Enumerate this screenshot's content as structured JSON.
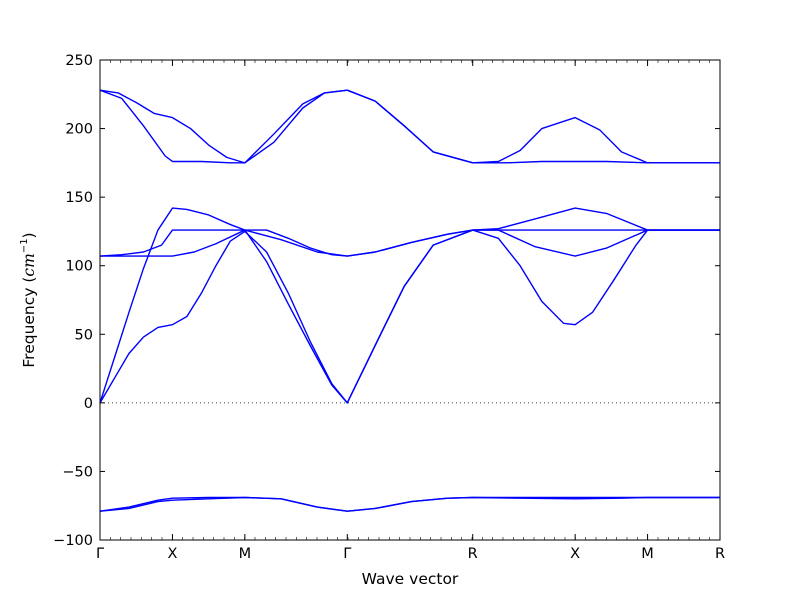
{
  "chart_data": {
    "type": "line",
    "xlabel": "Wave vector",
    "ylabel": "Frequency (cm⁻¹)",
    "ylabel_main": "Frequency (",
    "ylabel_unit": "cm",
    "ylabel_exp": "−1",
    "ylabel_close": ")",
    "ylim": [
      -100,
      250
    ],
    "yticks": [
      -100,
      -50,
      0,
      50,
      100,
      150,
      200,
      250
    ],
    "ytick_labels": [
      "−100",
      "−50",
      "0",
      "50",
      "100",
      "150",
      "200",
      "250"
    ],
    "xlim": [
      0,
      8.5
    ],
    "xticks": [
      0,
      1,
      2,
      3.414,
      5.146,
      6.56,
      7.56,
      8.56
    ],
    "xtick_labels": [
      "Γ",
      "X",
      "M",
      "Γ",
      "R",
      "X",
      "M",
      "R"
    ],
    "zero_line": {
      "y": 0,
      "style": "dotted"
    },
    "line_color": "#0000ff",
    "series": [
      {
        "x": [
          0,
          0.25,
          0.5,
          0.75,
          1,
          1.25,
          1.5,
          1.75,
          2,
          2.4,
          2.8,
          3.1,
          3.414,
          3.8,
          4.2,
          4.6,
          5.146,
          5.5,
          5.8,
          6.1,
          6.56,
          6.9,
          7.2,
          7.56,
          7.9,
          8.2,
          8.56
        ],
        "y": [
          228,
          226,
          219,
          211,
          208,
          200,
          188,
          179,
          175,
          196,
          218,
          226,
          228,
          220,
          202,
          183,
          175,
          176,
          184,
          200,
          208,
          199,
          183,
          175,
          175,
          175,
          175
        ]
      },
      {
        "x": [
          0,
          0.3,
          0.6,
          0.9,
          1,
          1.4,
          1.8,
          2,
          2.4,
          2.8,
          3.1,
          3.414,
          3.8,
          4.2,
          4.6,
          5.146,
          5.6,
          6.1,
          6.56,
          7.0,
          7.56,
          8.0,
          8.56
        ],
        "y": [
          228,
          222,
          202,
          180,
          176,
          176,
          175,
          175,
          190,
          215,
          226,
          228,
          220,
          202,
          183,
          175,
          175,
          176,
          176,
          176,
          175,
          175,
          175
        ]
      },
      {
        "x": [
          0,
          0.3,
          0.6,
          0.85,
          1,
          1.3,
          1.6,
          2,
          2.5,
          3.0,
          3.414,
          3.8,
          4.3,
          4.8,
          5.146,
          5.5,
          6.0,
          6.56,
          7.0,
          7.56,
          8.0,
          8.56
        ],
        "y": [
          107,
          108,
          110,
          115,
          126,
          126,
          126,
          126,
          119,
          110,
          107,
          110,
          117,
          123,
          126,
          126,
          126,
          126,
          126,
          126,
          126,
          126
        ]
      },
      {
        "x": [
          0,
          0.3,
          0.6,
          0.85,
          1,
          1.3,
          1.6,
          2,
          2.3,
          2.6,
          2.9,
          3.2,
          3.414,
          3.8,
          4.3,
          4.8,
          5.146,
          5.5,
          6.0,
          6.56,
          7.0,
          7.56,
          8.0,
          8.56
        ],
        "y": [
          107,
          107,
          107,
          107,
          107,
          110,
          116,
          126,
          126,
          120,
          113,
          108,
          107,
          110,
          117,
          123,
          126,
          126,
          114,
          107,
          113,
          126,
          126,
          126
        ]
      },
      {
        "x": [
          0,
          0.2,
          0.4,
          0.6,
          0.8,
          1,
          1.2,
          1.5,
          1.8,
          2,
          2.3,
          2.6,
          2.9,
          3.2,
          3.414,
          3.8,
          4.2,
          4.6,
          5.146,
          5.5,
          6.0,
          6.56,
          7.0,
          7.56,
          8.0,
          8.56
        ],
        "y": [
          0,
          33,
          66,
          98,
          126,
          142,
          141,
          137,
          130,
          126,
          103,
          72,
          42,
          13,
          0,
          42,
          85,
          115,
          126,
          127,
          134,
          142,
          138,
          126,
          126,
          126
        ]
      },
      {
        "x": [
          0,
          0.2,
          0.4,
          0.6,
          0.8,
          1,
          1.2,
          1.4,
          1.6,
          1.8,
          2,
          2.3,
          2.6,
          2.9,
          3.2,
          3.414,
          3.8,
          4.2,
          4.6,
          5.146,
          5.5,
          5.8,
          6.1,
          6.4,
          6.56,
          6.8,
          7.1,
          7.4,
          7.56,
          8.0,
          8.56
        ],
        "y": [
          0,
          18,
          36,
          48,
          55,
          57,
          63,
          80,
          100,
          118,
          125,
          110,
          80,
          45,
          14,
          0,
          42,
          85,
          115,
          126,
          120,
          100,
          74,
          58,
          57,
          66,
          90,
          115,
          126,
          126,
          126
        ]
      },
      {
        "x": [
          0,
          0.4,
          0.8,
          1,
          1.5,
          2,
          2.5,
          3.0,
          3.414,
          3.8,
          4.3,
          4.8,
          5.146,
          5.8,
          6.56,
          7.2,
          7.56,
          8.0,
          8.56
        ],
        "y": [
          -79,
          -77,
          -72,
          -71,
          -70,
          -69,
          -70,
          -76,
          -79,
          -77,
          -72,
          -69.5,
          -69,
          -69.5,
          -70,
          -69.5,
          -69,
          -69,
          -69
        ]
      },
      {
        "x": [
          0,
          0.4,
          0.8,
          1,
          1.5,
          2,
          2.5,
          3.0,
          3.414,
          3.8,
          4.3,
          4.8,
          5.146,
          5.8,
          6.56,
          7.2,
          7.56,
          8.0,
          8.56
        ],
        "y": [
          -79,
          -76,
          -71,
          -69.5,
          -69,
          -69,
          -70,
          -76,
          -79,
          -77,
          -72,
          -69.5,
          -69,
          -69,
          -69,
          -69,
          -69,
          -69,
          -69
        ]
      }
    ]
  }
}
